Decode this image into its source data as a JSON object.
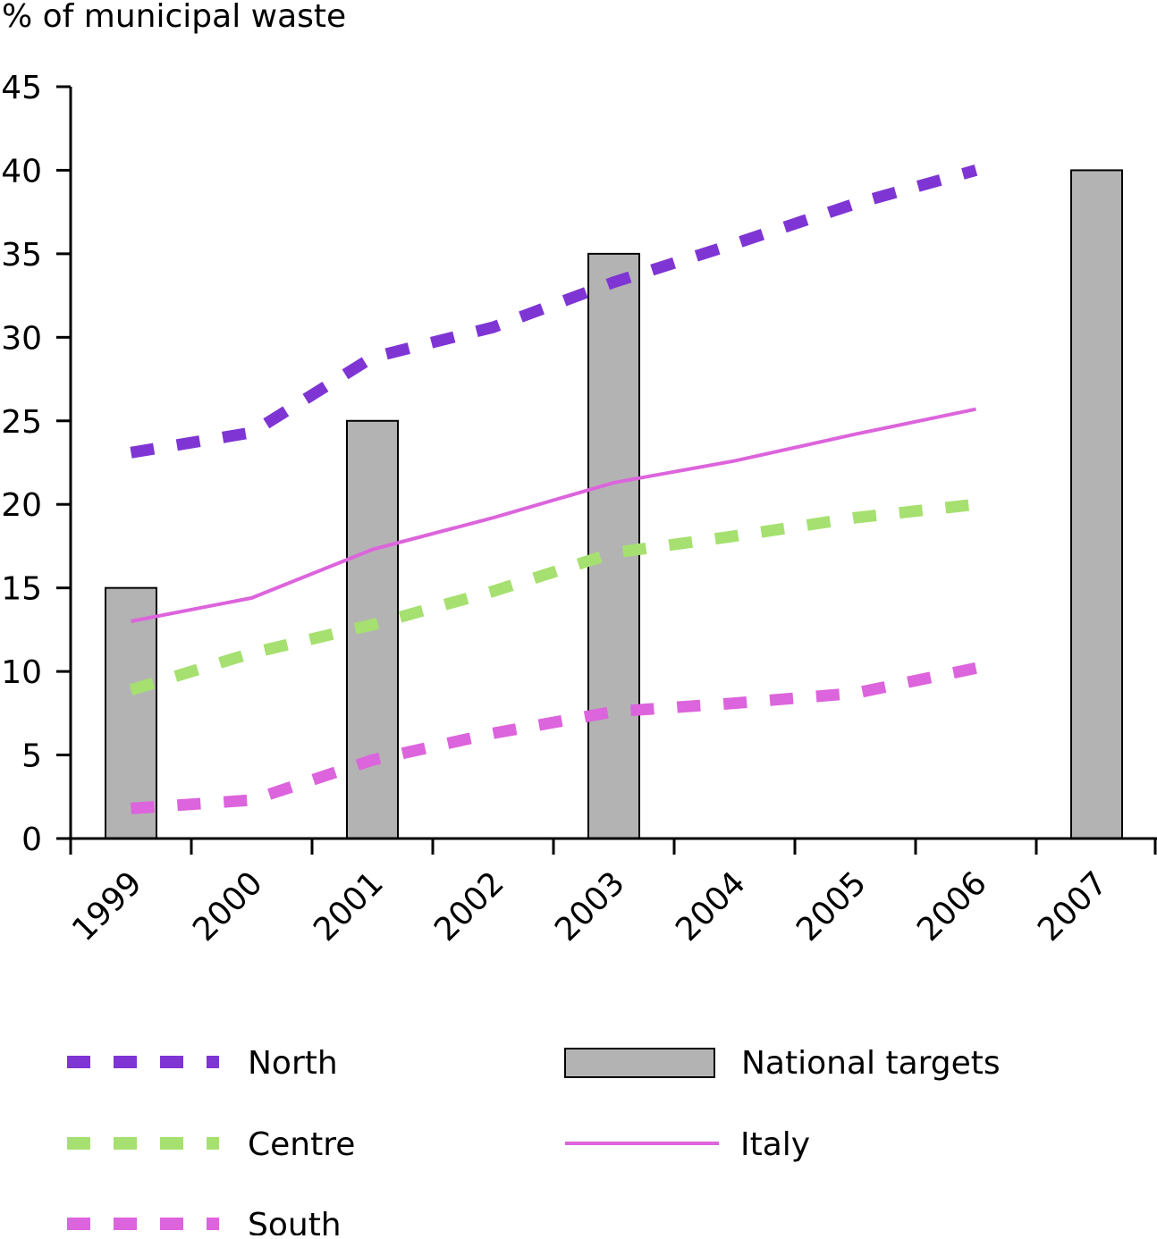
{
  "chart_data": {
    "type": "bar+line",
    "ylabel": "% of municipal waste",
    "ylim": [
      0,
      45
    ],
    "yticks": [
      0,
      5,
      10,
      15,
      20,
      25,
      30,
      35,
      40,
      45
    ],
    "ytick_labels": [
      "0",
      "5",
      "10",
      "15",
      "20",
      "25",
      "30",
      "35",
      "40",
      "45"
    ],
    "categories": [
      "1999",
      "2000",
      "2001",
      "2002",
      "2003",
      "2004",
      "2005",
      "2006",
      "2007"
    ],
    "grid": false,
    "legend_placement": "bottom",
    "bars": {
      "name": "National targets",
      "color": "#b3b3b3",
      "values": {
        "1999": 15,
        "2001": 25,
        "2003": 35,
        "2007": 40
      }
    },
    "series": [
      {
        "name": "North",
        "style": "dashed",
        "color": "#7f35d4",
        "values": [
          23.1,
          24.3,
          28.8,
          30.6,
          33.3,
          35.6,
          38.0,
          40.0,
          null
        ]
      },
      {
        "name": "Centre",
        "style": "dashed",
        "color": "#a6e070",
        "values": [
          8.9,
          11.1,
          12.8,
          14.8,
          17.1,
          18.1,
          19.2,
          20.0,
          null
        ]
      },
      {
        "name": "South",
        "style": "dashed",
        "color": "#dc64dc",
        "values": [
          1.8,
          2.3,
          4.7,
          6.3,
          7.6,
          8.1,
          8.7,
          10.2,
          null
        ]
      },
      {
        "name": "Italy",
        "style": "solid",
        "color": "#dc64dc",
        "values": [
          13.0,
          14.4,
          17.3,
          19.2,
          21.3,
          22.6,
          24.2,
          25.7,
          null
        ]
      }
    ]
  }
}
